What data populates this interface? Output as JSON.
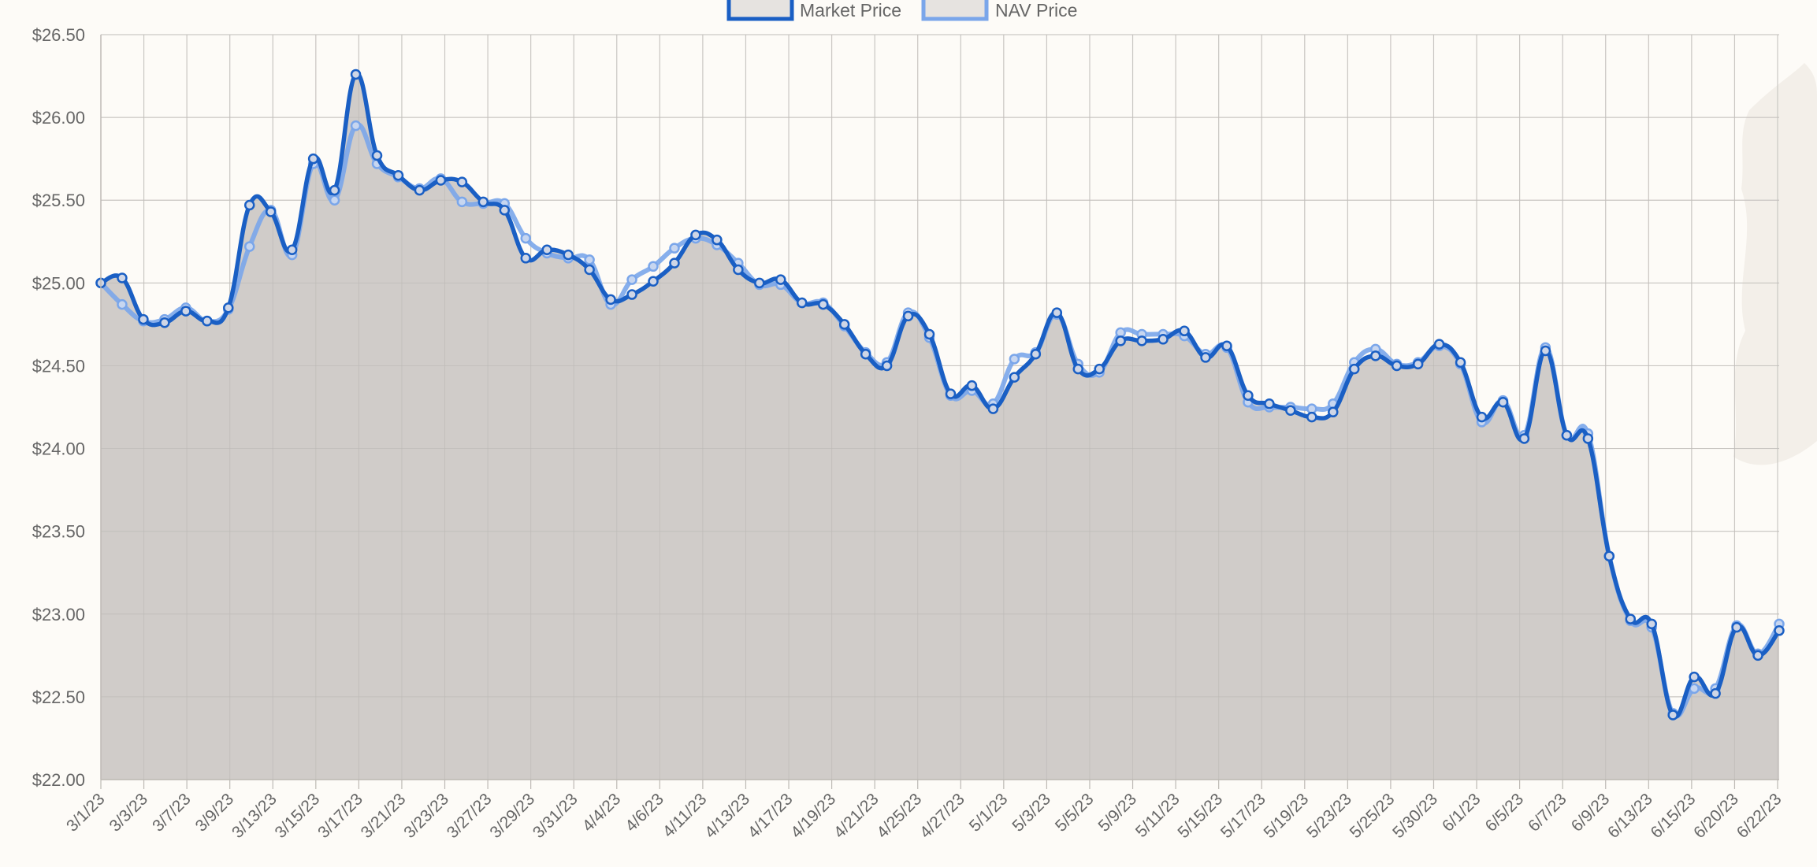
{
  "chart_data": {
    "type": "line",
    "legend_position": "top-center",
    "grid": true,
    "ylim": [
      22.0,
      26.5
    ],
    "y_ticks": [
      "$26.50",
      "$26.00",
      "$25.50",
      "$25.00",
      "$24.50",
      "$24.00",
      "$23.50",
      "$23.00",
      "$22.50",
      "$22.00"
    ],
    "y_tick_values": [
      26.5,
      26.0,
      25.5,
      25.0,
      24.5,
      24.0,
      23.5,
      23.0,
      22.5,
      22.0
    ],
    "x_tick_labels": [
      "3/1/23",
      "3/3/23",
      "3/7/23",
      "3/9/23",
      "3/13/23",
      "3/15/23",
      "3/17/23",
      "3/21/23",
      "3/23/23",
      "3/27/23",
      "3/29/23",
      "3/31/23",
      "4/4/23",
      "4/6/23",
      "4/11/23",
      "4/13/23",
      "4/17/23",
      "4/19/23",
      "4/21/23",
      "4/25/23",
      "4/27/23",
      "5/1/23",
      "5/3/23",
      "5/5/23",
      "5/9/23",
      "5/11/23",
      "5/15/23",
      "5/17/23",
      "5/19/23",
      "5/23/23",
      "5/25/23",
      "5/30/23",
      "6/1/23",
      "6/5/23",
      "6/7/23",
      "6/9/23",
      "6/13/23",
      "6/15/23",
      "6/20/23",
      "6/22/23"
    ],
    "series": [
      {
        "name": "Market Price",
        "color": "#1a5fc4",
        "values": [
          25.0,
          25.03,
          24.78,
          24.76,
          24.83,
          24.77,
          24.85,
          25.47,
          25.43,
          25.2,
          25.75,
          25.56,
          26.26,
          25.77,
          25.65,
          25.56,
          25.62,
          25.61,
          25.49,
          25.44,
          25.15,
          25.2,
          25.17,
          25.08,
          24.9,
          24.93,
          25.01,
          25.12,
          25.29,
          25.26,
          25.08,
          25.0,
          25.02,
          24.88,
          24.87,
          24.75,
          24.57,
          24.5,
          24.8,
          24.69,
          24.33,
          24.38,
          24.24,
          24.43,
          24.57,
          24.82,
          24.48,
          24.48,
          24.65,
          24.65,
          24.66,
          24.71,
          24.55,
          24.62,
          24.32,
          24.27,
          24.23,
          24.19,
          24.22,
          24.48,
          24.56,
          24.5,
          24.51,
          24.63,
          24.52,
          24.19,
          24.28,
          24.06,
          24.59,
          24.08,
          24.06,
          23.35,
          22.97,
          22.94,
          22.39,
          22.62,
          22.52,
          22.92,
          22.75,
          22.9
        ]
      },
      {
        "name": "NAV Price",
        "color": "#7aa6ea",
        "values": [
          25.0,
          24.87,
          24.77,
          24.78,
          24.85,
          24.77,
          24.84,
          25.22,
          25.44,
          25.17,
          25.72,
          25.5,
          25.95,
          25.72,
          25.64,
          25.57,
          25.63,
          25.49,
          25.48,
          25.48,
          25.27,
          25.18,
          25.15,
          25.14,
          24.87,
          25.02,
          25.1,
          25.21,
          25.27,
          25.23,
          25.12,
          24.99,
          24.99,
          24.88,
          24.88,
          24.74,
          24.58,
          24.52,
          24.82,
          24.67,
          24.32,
          24.35,
          24.27,
          24.54,
          24.58,
          24.81,
          24.51,
          24.46,
          24.7,
          24.69,
          24.69,
          24.68,
          24.57,
          24.61,
          24.28,
          24.25,
          24.25,
          24.24,
          24.27,
          24.52,
          24.6,
          24.51,
          24.52,
          24.62,
          24.51,
          24.16,
          24.29,
          24.08,
          24.61,
          24.08,
          24.09,
          23.35,
          22.96,
          22.92,
          22.4,
          22.55,
          22.55,
          22.93,
          22.76,
          22.94
        ]
      }
    ],
    "area_color": "#cdc9c6"
  }
}
